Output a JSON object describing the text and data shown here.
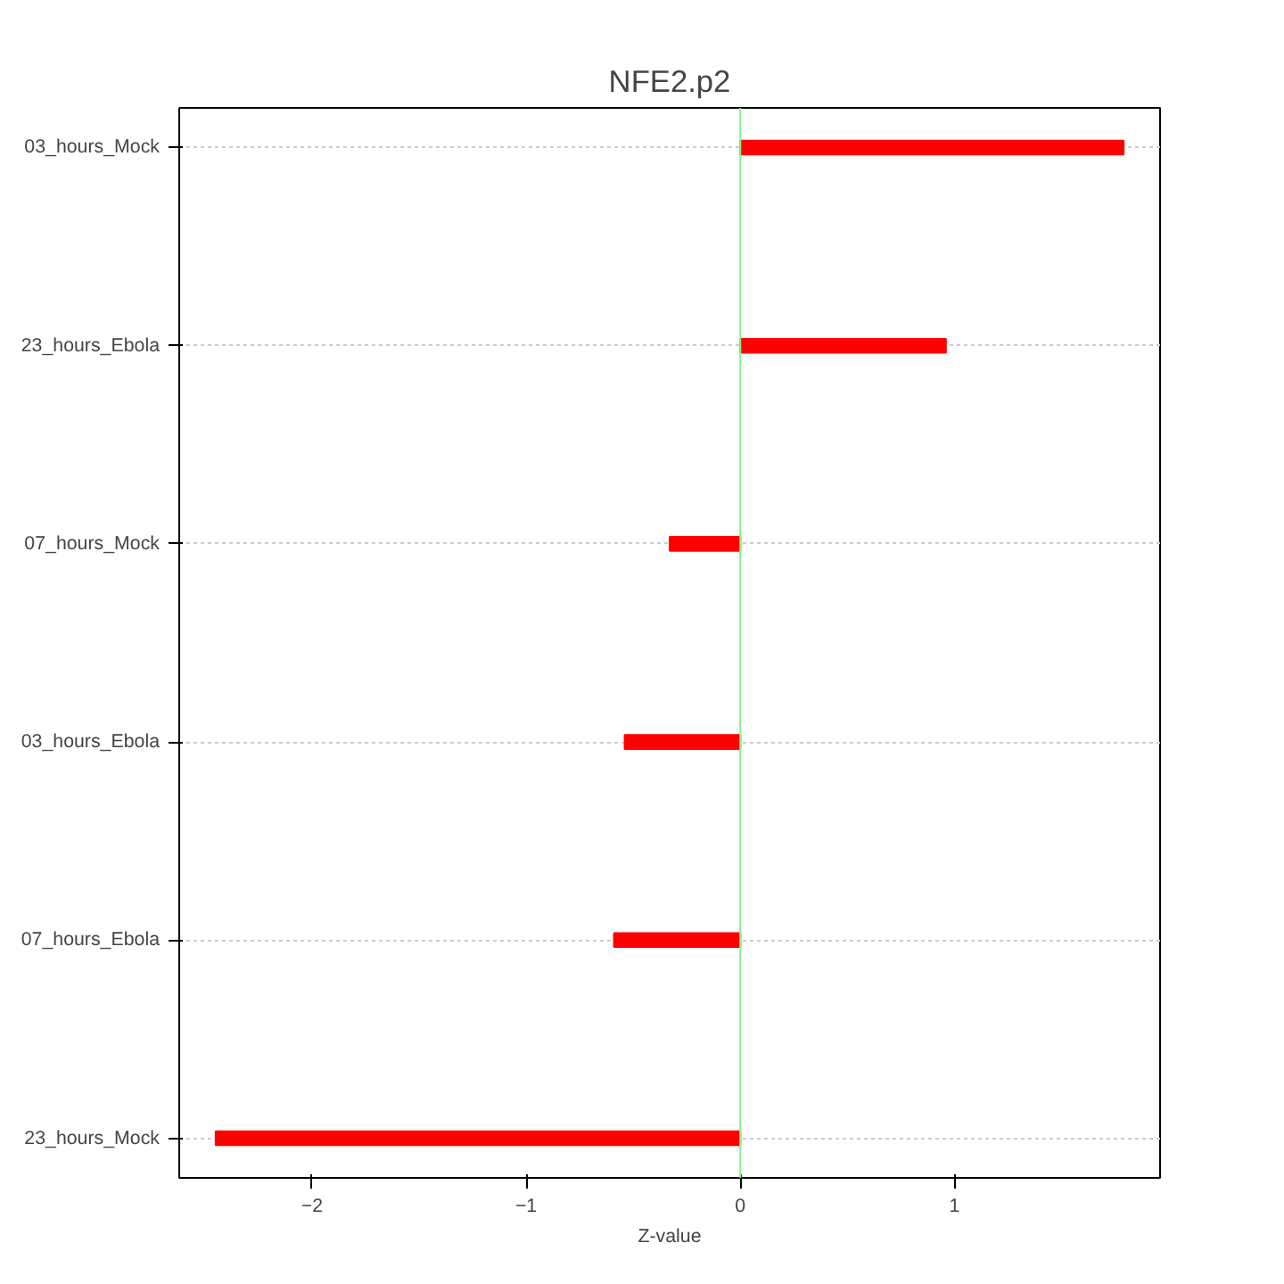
{
  "chart_data": {
    "type": "bar",
    "orientation": "horizontal",
    "title": "NFE2.p2",
    "xlabel": "Z-value",
    "categories": [
      "03_hours_Mock",
      "23_hours_Ebola",
      "07_hours_Mock",
      "03_hours_Ebola",
      "07_hours_Ebola",
      "23_hours_Mock"
    ],
    "values": [
      1.79,
      0.96,
      -0.33,
      -0.54,
      -0.59,
      -2.45
    ],
    "color": "#ff0000",
    "xlim": [
      -2.62,
      1.96
    ],
    "xticks": [
      -2,
      -1,
      0,
      1
    ],
    "grid": "y",
    "ref_lines": [
      {
        "axis": "x",
        "value": 0,
        "color": "#90ee90"
      }
    ]
  }
}
